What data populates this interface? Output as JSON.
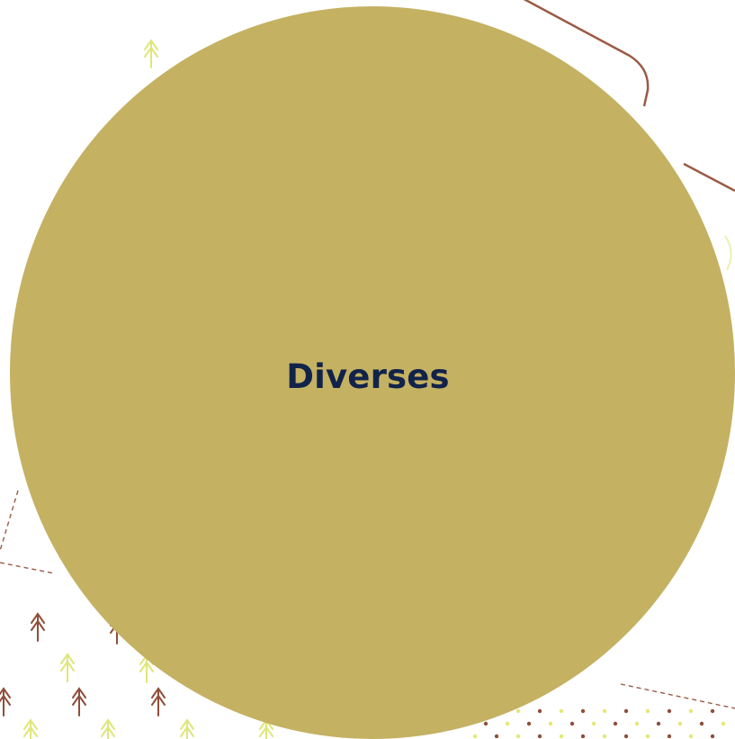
{
  "colors": {
    "background": "#ffffff",
    "circle_fill": "#c4b162",
    "label_color": "#12234a",
    "outline_brown": "#9a5b45",
    "arrow_brown": "#8f4e3b",
    "arrow_yellow": "#dfe67a",
    "dot_yellow": "#e3e873"
  },
  "icons": {
    "arrow": "upward-tree-arrow-icon",
    "dot": "dot-icon"
  },
  "circle": {
    "label": "Diverses"
  }
}
